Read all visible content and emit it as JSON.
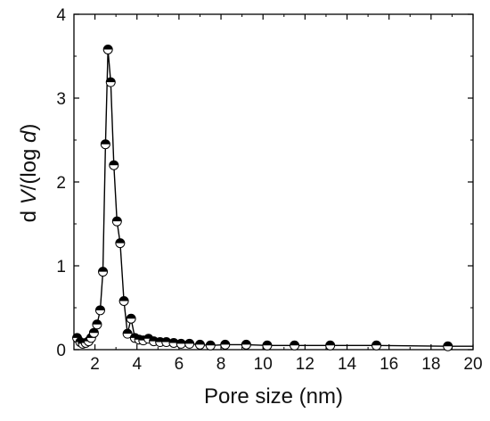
{
  "chart_data": {
    "type": "line",
    "title": "",
    "xlabel": "Pore size (nm)",
    "ylabel": {
      "prefix": "d ",
      "var1": "V",
      "mid": "/(log ",
      "var2": "d",
      "suffix": ")"
    },
    "xlim": [
      1,
      20
    ],
    "ylim": [
      0,
      4
    ],
    "xticks": [
      2,
      4,
      6,
      8,
      10,
      12,
      14,
      16,
      18,
      20
    ],
    "yticks": [
      0,
      1,
      2,
      3,
      4
    ],
    "grid": false,
    "legend": "none",
    "marker": "half-filled-circle",
    "colors": {
      "line": "#000000",
      "marker_fill_top": "#000000",
      "marker_fill_bottom": "#ffffff"
    },
    "series": [
      {
        "x": [
          1.15,
          1.3,
          1.42,
          1.56,
          1.7,
          1.82,
          1.95,
          2.1,
          2.25,
          2.38,
          2.5,
          2.62,
          2.75,
          2.9,
          3.05,
          3.2,
          3.38,
          3.55,
          3.72,
          3.9,
          4.1,
          4.3,
          4.55,
          4.8,
          5.1,
          5.4,
          5.75,
          6.1,
          6.5,
          7.0,
          7.5,
          8.2,
          9.2,
          10.2,
          11.5,
          13.2,
          15.4,
          18.8
        ],
        "y": [
          0.14,
          0.09,
          0.07,
          0.08,
          0.1,
          0.14,
          0.2,
          0.3,
          0.47,
          0.93,
          2.45,
          3.58,
          3.19,
          2.2,
          1.53,
          1.27,
          0.58,
          0.19,
          0.37,
          0.14,
          0.12,
          0.11,
          0.13,
          0.1,
          0.09,
          0.09,
          0.08,
          0.07,
          0.07,
          0.06,
          0.05,
          0.06,
          0.06,
          0.05,
          0.05,
          0.05,
          0.05,
          0.04
        ]
      }
    ]
  }
}
